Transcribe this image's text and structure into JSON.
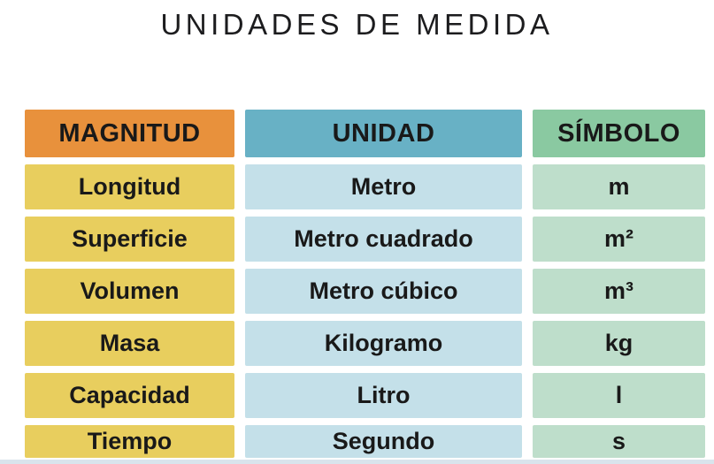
{
  "page": {
    "title": "UNIDADES DE MEDIDA"
  },
  "table": {
    "headers": [
      "MAGNITUD",
      "UNIDAD",
      "SÍMBOLO"
    ],
    "rows": [
      {
        "magnitud": "Longitud",
        "unidad": "Metro",
        "simbolo": "m"
      },
      {
        "magnitud": "Superficie",
        "unidad": "Metro cuadrado",
        "simbolo": "m²"
      },
      {
        "magnitud": "Volumen",
        "unidad": "Metro cúbico",
        "simbolo": "m³"
      },
      {
        "magnitud": "Masa",
        "unidad": "Kilogramo",
        "simbolo": "kg"
      },
      {
        "magnitud": "Capacidad",
        "unidad": "Litro",
        "simbolo": "l"
      },
      {
        "magnitud": "Tiempo",
        "unidad": "Segundo",
        "simbolo": "s"
      }
    ]
  },
  "chart_data": {
    "type": "table",
    "title": "UNIDADES DE MEDIDA",
    "columns": [
      "MAGNITUD",
      "UNIDAD",
      "SÍMBOLO"
    ],
    "rows": [
      [
        "Longitud",
        "Metro",
        "m"
      ],
      [
        "Superficie",
        "Metro cuadrado",
        "m²"
      ],
      [
        "Volumen",
        "Metro cúbico",
        "m³"
      ],
      [
        "Masa",
        "Kilogramo",
        "kg"
      ],
      [
        "Capacidad",
        "Litro",
        "l"
      ],
      [
        "Tiempo",
        "Segundo",
        "s"
      ]
    ]
  },
  "colors": {
    "header_magnitud": "#E8913C",
    "header_unidad": "#68B1C5",
    "header_simbolo": "#8AC9A1",
    "cell_magnitud": "#E8CE5E",
    "cell_unidad": "#C4E0E9",
    "cell_simbolo": "#BEDECB",
    "text": "#191919",
    "bottom_strip": "#D9E4EC",
    "background": "#FFFFFF"
  }
}
